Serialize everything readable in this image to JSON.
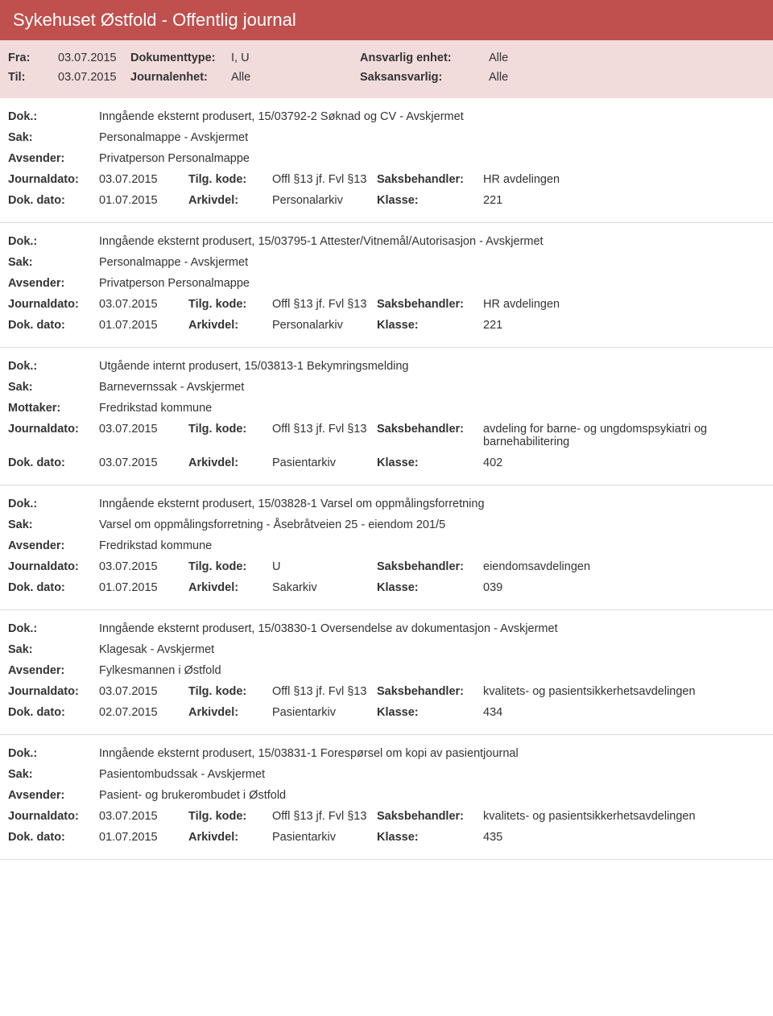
{
  "header": {
    "title": "Sykehuset Østfold - Offentlig journal"
  },
  "meta": {
    "fra_label": "Fra:",
    "fra_value": "03.07.2015",
    "til_label": "Til:",
    "til_value": "03.07.2015",
    "doktype_label": "Dokumenttype:",
    "doktype_value": "I, U",
    "journalenhet_label": "Journalenhet:",
    "journalenhet_value": "Alle",
    "ansvarlig_label": "Ansvarlig enhet:",
    "ansvarlig_value": "Alle",
    "saksansvarlig_label": "Saksansvarlig:",
    "saksansvarlig_value": "Alle"
  },
  "labels": {
    "dok": "Dok.:",
    "sak": "Sak:",
    "avsender": "Avsender:",
    "mottaker": "Mottaker:",
    "journaldato": "Journaldato:",
    "dokdato": "Dok. dato:",
    "tilgkode": "Tilg. kode:",
    "arkivdel": "Arkivdel:",
    "saksbehandler": "Saksbehandler:",
    "klasse": "Klasse:"
  },
  "entries": [
    {
      "dok": "Inngående eksternt produsert, 15/03792-2 Søknad og CV - Avskjermet",
      "sak": "Personalmappe - Avskjermet",
      "party_label": "Avsender:",
      "party": "Privatperson Personalmappe",
      "journaldato": "03.07.2015",
      "tilgkode": "Offl §13 jf. Fvl §13",
      "saksbehandler": "HR avdelingen",
      "dokdato": "01.07.2015",
      "arkivdel": "Personalarkiv",
      "klasse": "221"
    },
    {
      "dok": "Inngående eksternt produsert, 15/03795-1 Attester/Vitnemål/Autorisasjon - Avskjermet",
      "sak": "Personalmappe - Avskjermet",
      "party_label": "Avsender:",
      "party": "Privatperson Personalmappe",
      "journaldato": "03.07.2015",
      "tilgkode": "Offl §13 jf. Fvl §13",
      "saksbehandler": "HR avdelingen",
      "dokdato": "01.07.2015",
      "arkivdel": "Personalarkiv",
      "klasse": "221"
    },
    {
      "dok": "Utgående internt produsert, 15/03813-1 Bekymringsmelding",
      "sak": "Barnevernssak - Avskjermet",
      "party_label": "Mottaker:",
      "party": "Fredrikstad kommune",
      "journaldato": "03.07.2015",
      "tilgkode": "Offl §13 jf. Fvl §13",
      "saksbehandler": "avdeling for barne- og ungdomspsykiatri og barnehabilitering",
      "dokdato": "03.07.2015",
      "arkivdel": "Pasientarkiv",
      "klasse": "402"
    },
    {
      "dok": "Inngående eksternt produsert, 15/03828-1 Varsel om oppmålingsforretning",
      "sak": "Varsel om oppmålingsforretning - Åsebråtveien 25 - eiendom 201/5",
      "party_label": "Avsender:",
      "party": "Fredrikstad kommune",
      "journaldato": "03.07.2015",
      "tilgkode": "U",
      "saksbehandler": "eiendomsavdelingen",
      "dokdato": "01.07.2015",
      "arkivdel": "Sakarkiv",
      "klasse": "039"
    },
    {
      "dok": "Inngående eksternt produsert, 15/03830-1 Oversendelse av dokumentasjon - Avskjermet",
      "sak": "Klagesak - Avskjermet",
      "party_label": "Avsender:",
      "party": "Fylkesmannen i Østfold",
      "journaldato": "03.07.2015",
      "tilgkode": "Offl §13 jf. Fvl §13",
      "saksbehandler": "kvalitets- og pasientsikkerhetsavdelingen",
      "dokdato": "02.07.2015",
      "arkivdel": "Pasientarkiv",
      "klasse": "434"
    },
    {
      "dok": "Inngående eksternt produsert, 15/03831-1 Forespørsel om kopi av pasientjournal",
      "sak": "Pasientombudssak - Avskjermet",
      "party_label": "Avsender:",
      "party": "Pasient- og brukerombudet i Østfold",
      "journaldato": "03.07.2015",
      "tilgkode": "Offl §13 jf. Fvl §13",
      "saksbehandler": "kvalitets- og pasientsikkerhetsavdelingen",
      "dokdato": "01.07.2015",
      "arkivdel": "Pasientarkiv",
      "klasse": "435"
    }
  ],
  "style": {
    "header_bg": "#c0504d",
    "meta_bg": "#f1dbdb",
    "border_color": "#dddddd",
    "text_color": "#333333"
  }
}
